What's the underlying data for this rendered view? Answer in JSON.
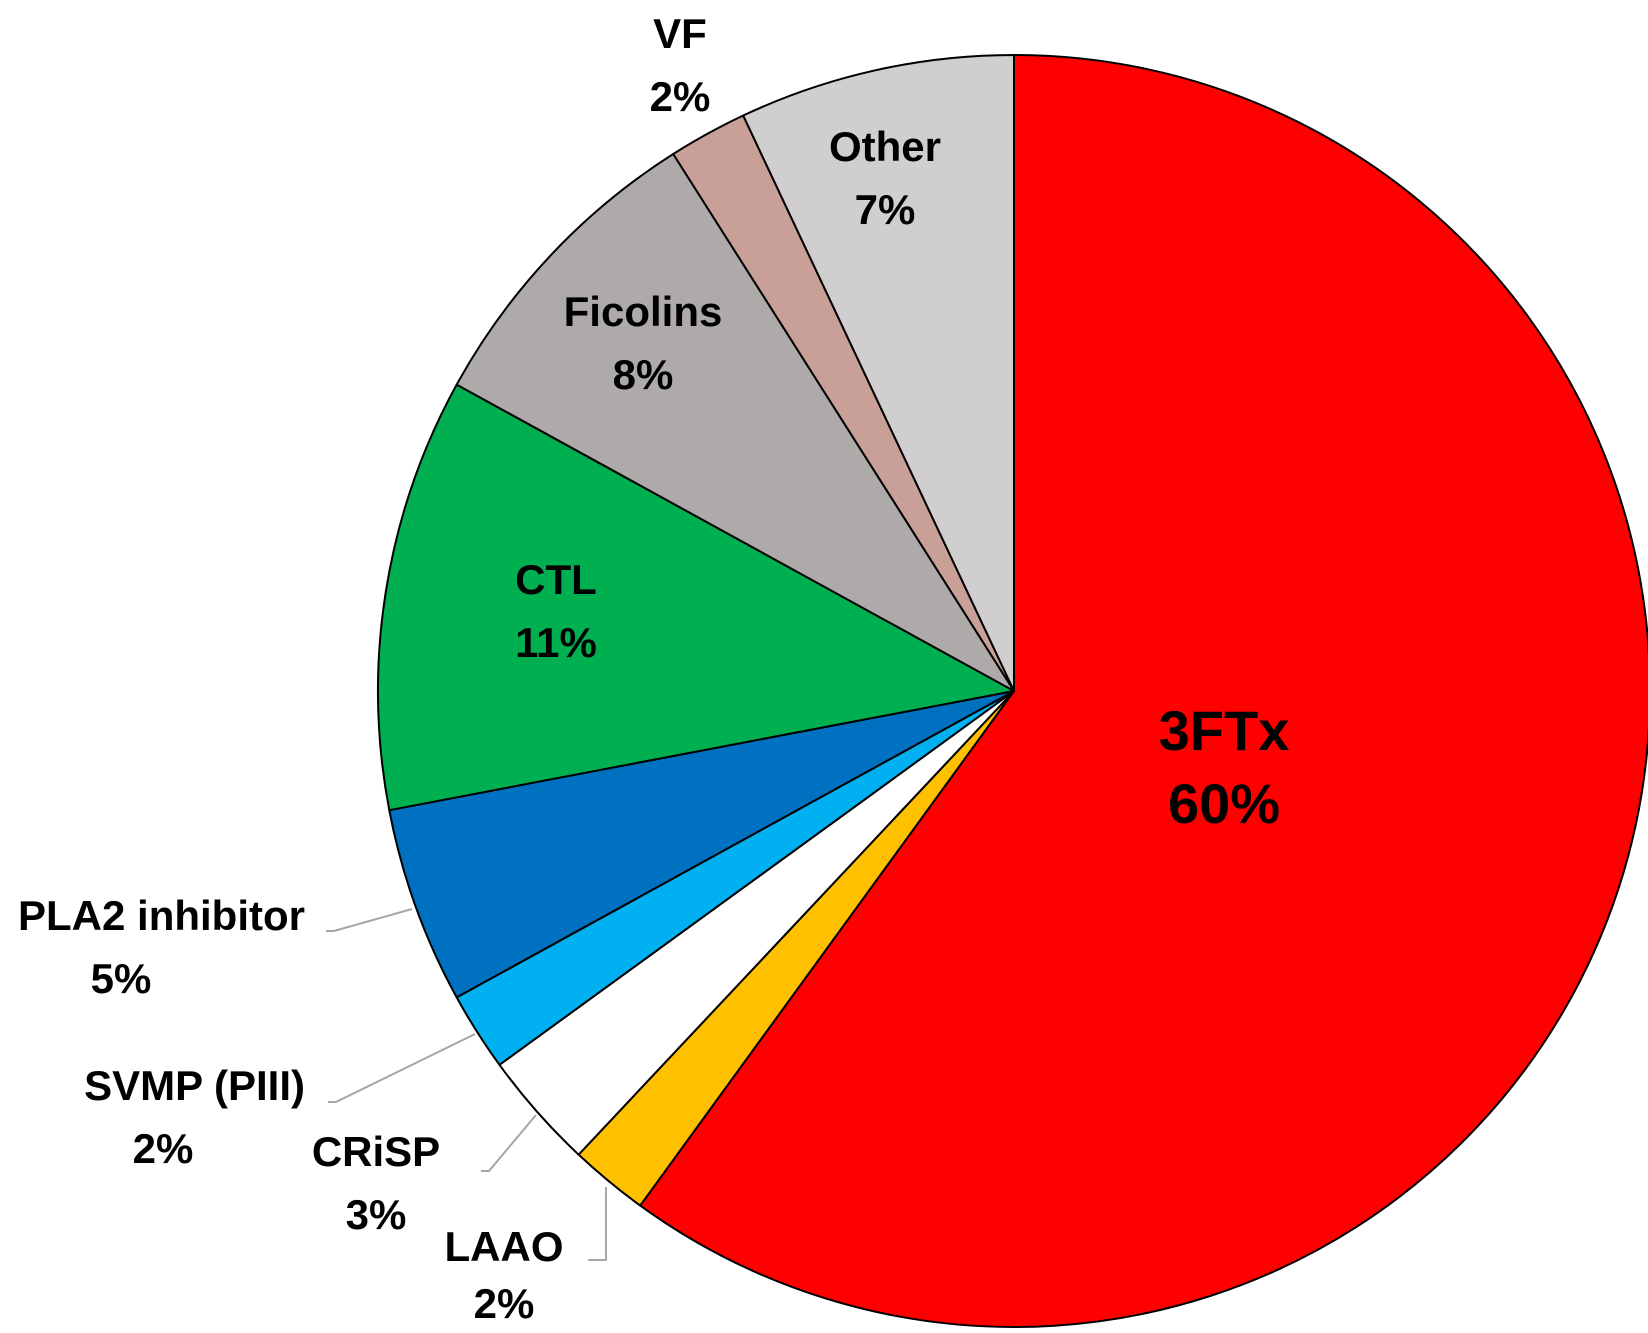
{
  "chart_data": {
    "type": "pie",
    "categories": [
      "3FTx",
      "LAAO",
      "CRiSP",
      "SVMP (PIII)",
      "PLA2 inhibitor",
      "CTL",
      "Ficolins",
      "VF",
      "Other"
    ],
    "values": [
      60,
      2,
      3,
      2,
      5,
      11,
      8,
      2,
      7
    ],
    "value_labels": [
      "60%",
      "2%",
      "3%",
      "2%",
      "5%",
      "11%",
      "8%",
      "2%",
      "7%"
    ],
    "colors": [
      "#ff0000",
      "#ffc000",
      "#ffffff",
      "#00b0f0",
      "#0070c0",
      "#00b050",
      "#aeaaaa",
      "#c9a098",
      "#d0cece"
    ]
  }
}
